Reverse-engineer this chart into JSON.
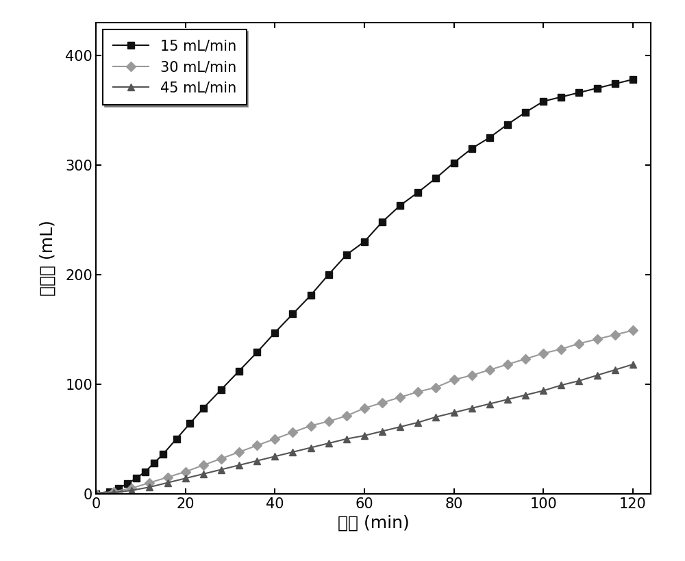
{
  "series": [
    {
      "label": "15 mL/min",
      "color": "#111111",
      "marker": "s",
      "markersize": 7,
      "linewidth": 1.5,
      "linestyle": "-",
      "x": [
        0,
        3,
        5,
        7,
        9,
        11,
        13,
        15,
        18,
        21,
        24,
        28,
        32,
        36,
        40,
        44,
        48,
        52,
        56,
        60,
        64,
        68,
        72,
        76,
        80,
        84,
        88,
        92,
        96,
        100,
        104,
        108,
        112,
        116,
        120
      ],
      "y": [
        0,
        2,
        5,
        9,
        14,
        20,
        28,
        36,
        50,
        64,
        78,
        95,
        112,
        129,
        147,
        164,
        181,
        200,
        218,
        230,
        248,
        263,
        275,
        288,
        302,
        315,
        325,
        337,
        348,
        358,
        362,
        366,
        370,
        374,
        378
      ]
    },
    {
      "label": "30 mL/min",
      "color": "#999999",
      "marker": "D",
      "markersize": 7,
      "linewidth": 1.5,
      "linestyle": "-",
      "x": [
        0,
        4,
        8,
        12,
        16,
        20,
        24,
        28,
        32,
        36,
        40,
        44,
        48,
        52,
        56,
        60,
        64,
        68,
        72,
        76,
        80,
        84,
        88,
        92,
        96,
        100,
        104,
        108,
        112,
        116,
        120
      ],
      "y": [
        0,
        2,
        5,
        10,
        15,
        20,
        26,
        32,
        38,
        44,
        50,
        56,
        62,
        66,
        71,
        78,
        83,
        88,
        93,
        97,
        104,
        108,
        113,
        118,
        123,
        128,
        132,
        137,
        141,
        145,
        149
      ]
    },
    {
      "label": "45 mL/min",
      "color": "#555555",
      "marker": "^",
      "markersize": 7,
      "linewidth": 1.5,
      "linestyle": "-",
      "x": [
        0,
        4,
        8,
        12,
        16,
        20,
        24,
        28,
        32,
        36,
        40,
        44,
        48,
        52,
        56,
        60,
        64,
        68,
        72,
        76,
        80,
        84,
        88,
        92,
        96,
        100,
        104,
        108,
        112,
        116,
        120
      ],
      "y": [
        0,
        1,
        3,
        6,
        10,
        14,
        18,
        22,
        26,
        30,
        34,
        38,
        42,
        46,
        50,
        53,
        57,
        61,
        65,
        70,
        74,
        78,
        82,
        86,
        90,
        94,
        99,
        103,
        108,
        113,
        118
      ]
    }
  ],
  "xlabel": "时间 (min)",
  "ylabel": "产气量 (mL)",
  "xlim": [
    0,
    124
  ],
  "ylim": [
    0,
    430
  ],
  "xticks": [
    0,
    20,
    40,
    60,
    80,
    100,
    120
  ],
  "yticks": [
    0,
    100,
    200,
    300,
    400
  ],
  "background_color": "#ffffff",
  "legend_loc": "upper left",
  "legend_fontsize": 15,
  "axis_fontsize": 18,
  "tick_fontsize": 15
}
